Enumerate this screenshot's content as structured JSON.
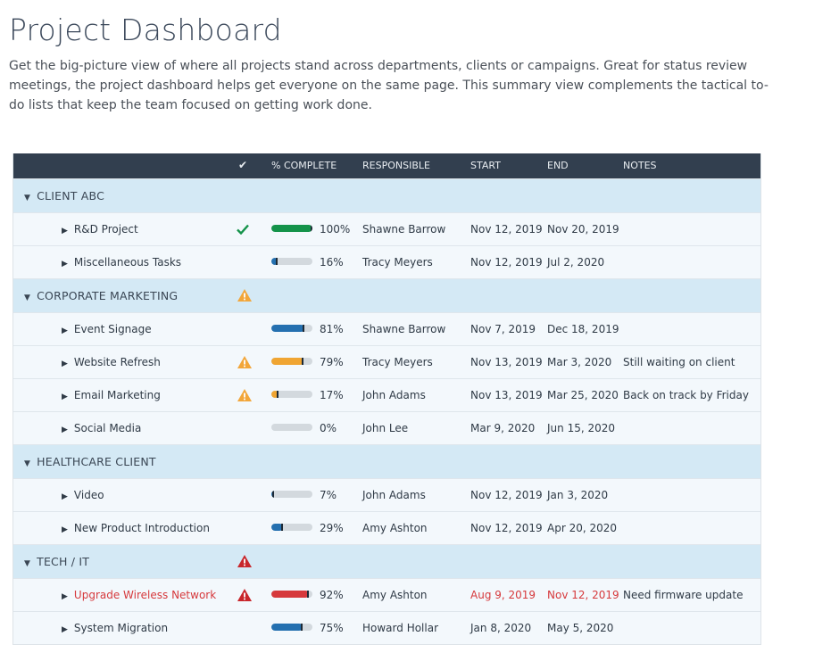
{
  "page": {
    "title": "Project Dashboard",
    "description": "Get the big-picture view of where all projects stand across departments, clients or campaigns. Great for status review meetings, the project dashboard helps get everyone on the same page. This summary view complements the tactical to-do lists that keep the team focused on getting work done."
  },
  "table": {
    "headers": {
      "check": "✔",
      "complete": "% COMPLETE",
      "responsible": "RESPONSIBLE",
      "start": "START",
      "end": "END",
      "notes": "NOTES"
    },
    "colors": {
      "header_bg": "#323f4f",
      "group_bg": "#d4e9f5",
      "task_bg": "#f3f8fc",
      "green": "#14934a",
      "blue": "#2470b0",
      "orange": "#f0a532",
      "red": "#d6393c",
      "warning_orange": "#f2a63a",
      "warning_red": "#c8262b"
    },
    "groups": [
      {
        "name": "CLIENT ABC",
        "status_icon": "",
        "tasks": [
          {
            "name": "R&D Project",
            "status_icon": "checkmark-icon",
            "progress": 1.0,
            "bar_color": "green",
            "percent": "100%",
            "responsible": "Shawne Barrow",
            "start": "Nov 12, 2019",
            "end": "Nov 20, 2019",
            "notes": "",
            "alert": false
          },
          {
            "name": "Miscellaneous Tasks",
            "status_icon": "",
            "progress": 0.16,
            "bar_color": "blue",
            "percent": "16%",
            "responsible": "Tracy Meyers",
            "start": "Nov 12, 2019",
            "end": "Jul 2, 2020",
            "notes": "",
            "alert": false
          }
        ]
      },
      {
        "name": "CORPORATE MARKETING",
        "status_icon": "warning-orange-icon",
        "tasks": [
          {
            "name": "Event Signage",
            "status_icon": "",
            "progress": 0.81,
            "bar_color": "blue",
            "percent": "81%",
            "responsible": "Shawne Barrow",
            "start": "Nov 7, 2019",
            "end": "Dec 18, 2019",
            "notes": "",
            "alert": false
          },
          {
            "name": "Website Refresh",
            "status_icon": "warning-orange-icon",
            "progress": 0.79,
            "bar_color": "orange",
            "percent": "79%",
            "responsible": "Tracy Meyers",
            "start": "Nov 13, 2019",
            "end": "Mar 3, 2020",
            "notes": "Still waiting on client",
            "alert": false
          },
          {
            "name": "Email Marketing",
            "status_icon": "warning-orange-icon",
            "progress": 0.17,
            "bar_color": "orange",
            "percent": "17%",
            "responsible": "John Adams",
            "start": "Nov 13, 2019",
            "end": "Mar 25, 2020",
            "notes": "Back on track by Friday",
            "alert": false
          },
          {
            "name": "Social Media",
            "status_icon": "",
            "progress": 0.0,
            "bar_color": "blue",
            "percent": "0%",
            "responsible": "John Lee",
            "start": "Mar 9, 2020",
            "end": "Jun 15, 2020",
            "notes": "",
            "alert": false
          }
        ]
      },
      {
        "name": "HEALTHCARE CLIENT",
        "status_icon": "",
        "tasks": [
          {
            "name": "Video",
            "status_icon": "",
            "progress": 0.07,
            "bar_color": "blue",
            "percent": "7%",
            "responsible": "John Adams",
            "start": "Nov 12, 2019",
            "end": "Jan 3, 2020",
            "notes": "",
            "alert": false
          },
          {
            "name": "New Product Introduction",
            "status_icon": "",
            "progress": 0.29,
            "bar_color": "blue",
            "percent": "29%",
            "responsible": "Amy Ashton",
            "start": "Nov 12, 2019",
            "end": "Apr 20, 2020",
            "notes": "",
            "alert": false
          }
        ]
      },
      {
        "name": "TECH / IT",
        "status_icon": "warning-red-icon",
        "tasks": [
          {
            "name": "Upgrade Wireless Network",
            "status_icon": "warning-red-icon",
            "progress": 0.92,
            "bar_color": "red",
            "percent": "92%",
            "responsible": "Amy Ashton",
            "start": "Aug 9, 2019",
            "end": "Nov 12, 2019",
            "notes": "Need firmware update",
            "alert": true
          },
          {
            "name": "System Migration",
            "status_icon": "",
            "progress": 0.75,
            "bar_color": "blue",
            "percent": "75%",
            "responsible": "Howard Hollar",
            "start": "Jan 8, 2020",
            "end": "May 5, 2020",
            "notes": "",
            "alert": false
          }
        ]
      }
    ]
  }
}
